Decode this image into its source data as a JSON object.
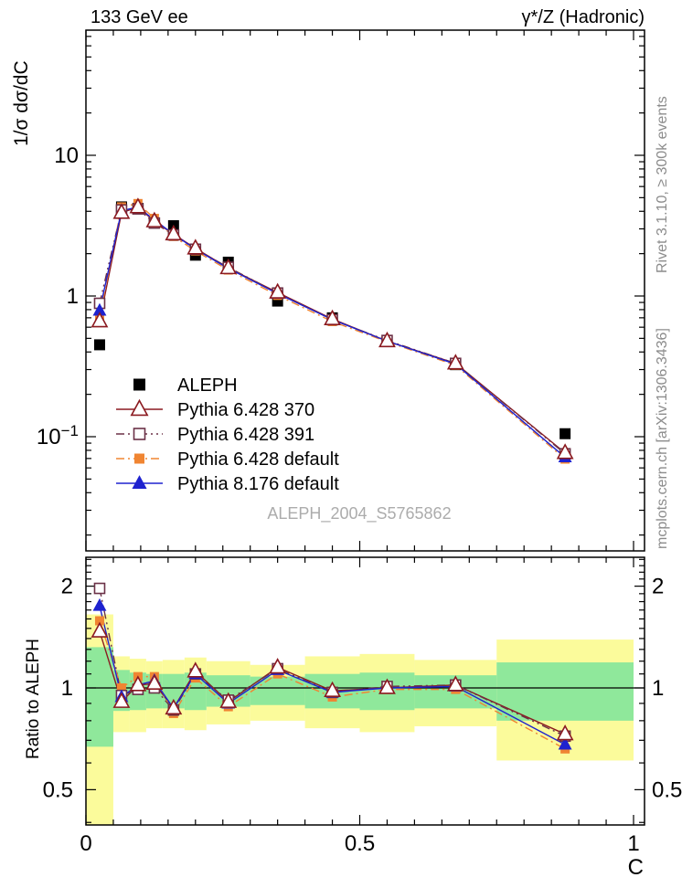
{
  "titles": {
    "top_left": "133 GeV ee",
    "top_right": "γ*/Z (Hadronic)",
    "watermark": "ALEPH_2004_S5765862",
    "right_top": "Rivet 3.1.10, ≥ 300k events",
    "right_bottom": "mcplots.cern.ch [arXiv:1306.3436]"
  },
  "chart_data": {
    "type": "line",
    "xlabel": "C",
    "xlim": [
      0,
      1.02
    ],
    "xtick_values": [
      0,
      0.5,
      1
    ],
    "xtick_labels": [
      "0",
      "0.5",
      "1"
    ],
    "x_minor_step": 0.05,
    "main_panel": {
      "ylabel": "1/σ  dσ/dC",
      "yscale": "log",
      "ylim": [
        0.0155,
        77
      ],
      "ytick_values": [
        10,
        1,
        0.1
      ],
      "ytick_labels": [
        {
          "text": "10",
          "sup": ""
        },
        {
          "text": "1",
          "sup": ""
        },
        {
          "text": "10",
          "sup": "−1"
        }
      ]
    },
    "ratio_panel": {
      "ylabel": "Ratio to ALEPH",
      "yscale": "log",
      "ylim": [
        0.395,
        2.42
      ],
      "ytick_values": [
        2,
        1,
        0.5
      ],
      "ytick_labels": [
        "2",
        "1",
        "0.5"
      ],
      "reference_line": 1.0
    },
    "x": [
      0.025,
      0.065,
      0.095,
      0.125,
      0.16,
      0.2,
      0.26,
      0.35,
      0.45,
      0.55,
      0.675,
      0.875
    ],
    "series": [
      {
        "name": "ALEPH",
        "color": "#000000",
        "marker": "square",
        "fill": "filled",
        "line": "none",
        "values": [
          0.45,
          4.3,
          4.2,
          3.3,
          3.16,
          1.95,
          1.74,
          0.92,
          0.7,
          0.478,
          0.325,
          0.105
        ]
      },
      {
        "name": "Pythia 6.428 370",
        "color": "#8B1A20",
        "marker": "triangle",
        "fill": "open",
        "line": "solid",
        "values": [
          0.662,
          3.91,
          4.28,
          3.4,
          2.75,
          2.18,
          1.58,
          1.06,
          0.686,
          0.478,
          0.332,
          0.0767
        ],
        "ratios": [
          1.47,
          0.91,
          1.02,
          1.03,
          0.87,
          1.12,
          0.91,
          1.15,
          0.98,
          1.0,
          1.02,
          0.73
        ]
      },
      {
        "name": "Pythia 6.428 391",
        "color": "#6B3147",
        "marker": "square",
        "fill": "open",
        "line": "dashdotdot",
        "values": [
          0.887,
          4.09,
          4.16,
          3.3,
          2.72,
          2.15,
          1.6,
          1.05,
          0.679,
          0.483,
          0.332,
          0.0756
        ],
        "ratios": [
          1.97,
          0.95,
          0.99,
          1.0,
          0.86,
          1.1,
          0.92,
          1.14,
          0.97,
          1.01,
          1.02,
          0.72
        ]
      },
      {
        "name": "Pythia 6.428 default",
        "color": "#F08532",
        "marker": "square",
        "fill": "filled",
        "line": "dashdot",
        "values": [
          0.711,
          4.3,
          4.54,
          3.56,
          2.65,
          2.09,
          1.53,
          1.01,
          0.658,
          0.473,
          0.322,
          0.0693
        ],
        "ratios": [
          1.58,
          1.0,
          1.08,
          1.08,
          0.84,
          1.07,
          0.88,
          1.1,
          0.94,
          0.99,
          0.99,
          0.66
        ]
      },
      {
        "name": "Pythia 8.176 default",
        "color": "#1E22CF",
        "marker": "triangle",
        "fill": "filled",
        "line": "solid",
        "values": [
          0.788,
          4.04,
          4.28,
          3.47,
          2.75,
          2.15,
          1.57,
          1.04,
          0.679,
          0.478,
          0.328,
          0.0714
        ],
        "ratios": [
          1.75,
          0.94,
          1.02,
          1.05,
          0.87,
          1.1,
          0.9,
          1.13,
          0.97,
          1.0,
          1.01,
          0.68
        ]
      }
    ],
    "uncertainty_bands": {
      "outer_color": "#FBFB9B",
      "inner_color": "#8FE89B",
      "bins": [
        {
          "lo": 0.0,
          "hi": 0.05,
          "outer": [
            0.39,
            1.65
          ],
          "inner": [
            0.67,
            1.32
          ]
        },
        {
          "lo": 0.05,
          "hi": 0.08,
          "outer": [
            0.74,
            1.24
          ],
          "inner": [
            0.855,
            1.13
          ]
        },
        {
          "lo": 0.08,
          "hi": 0.11,
          "outer": [
            0.74,
            1.22
          ],
          "inner": [
            0.86,
            1.11
          ]
        },
        {
          "lo": 0.11,
          "hi": 0.14,
          "outer": [
            0.76,
            1.2
          ],
          "inner": [
            0.87,
            1.1
          ]
        },
        {
          "lo": 0.14,
          "hi": 0.18,
          "outer": [
            0.76,
            1.21
          ],
          "inner": [
            0.87,
            1.1
          ]
        },
        {
          "lo": 0.18,
          "hi": 0.22,
          "outer": [
            0.75,
            1.23
          ],
          "inner": [
            0.86,
            1.11
          ]
        },
        {
          "lo": 0.22,
          "hi": 0.3,
          "outer": [
            0.78,
            1.2
          ],
          "inner": [
            0.88,
            1.09
          ]
        },
        {
          "lo": 0.3,
          "hi": 0.4,
          "outer": [
            0.8,
            1.17
          ],
          "inner": [
            0.89,
            1.08
          ]
        },
        {
          "lo": 0.4,
          "hi": 0.5,
          "outer": [
            0.76,
            1.24
          ],
          "inner": [
            0.87,
            1.1
          ]
        },
        {
          "lo": 0.5,
          "hi": 0.6,
          "outer": [
            0.74,
            1.26
          ],
          "inner": [
            0.86,
            1.11
          ]
        },
        {
          "lo": 0.6,
          "hi": 0.75,
          "outer": [
            0.77,
            1.21
          ],
          "inner": [
            0.87,
            1.09
          ]
        },
        {
          "lo": 0.75,
          "hi": 1.0,
          "outer": [
            0.61,
            1.39
          ],
          "inner": [
            0.8,
            1.19
          ]
        }
      ]
    }
  }
}
